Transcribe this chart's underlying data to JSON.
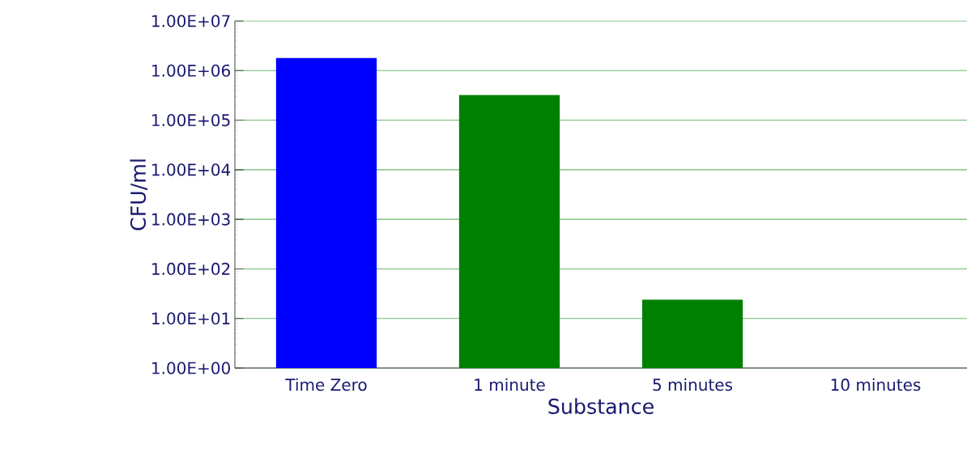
{
  "chart_data": {
    "type": "bar",
    "xlabel": "Substance",
    "ylabel": "CFU/ml",
    "categories": [
      "Time Zero",
      "1 minute",
      "5 minutes",
      "10 minutes"
    ],
    "values": [
      1800000,
      320000,
      24,
      null
    ],
    "colors": [
      "#0000ff",
      "#008000",
      "#008000",
      "#008000"
    ],
    "log": "y",
    "ylim": [
      1,
      10000000
    ],
    "yticks": [
      {
        "value": 1,
        "label": "1.00E+00"
      },
      {
        "value": 10,
        "label": "1.00E+01"
      },
      {
        "value": 100,
        "label": "1.00E+02"
      },
      {
        "value": 1000,
        "label": "1.00E+03"
      },
      {
        "value": 10000,
        "label": "1.00E+04"
      },
      {
        "value": 100000,
        "label": "1.00E+05"
      },
      {
        "value": 1000000,
        "label": "1.00E+06"
      },
      {
        "value": 10000000,
        "label": "1.00E+07"
      }
    ],
    "grid": "y"
  }
}
